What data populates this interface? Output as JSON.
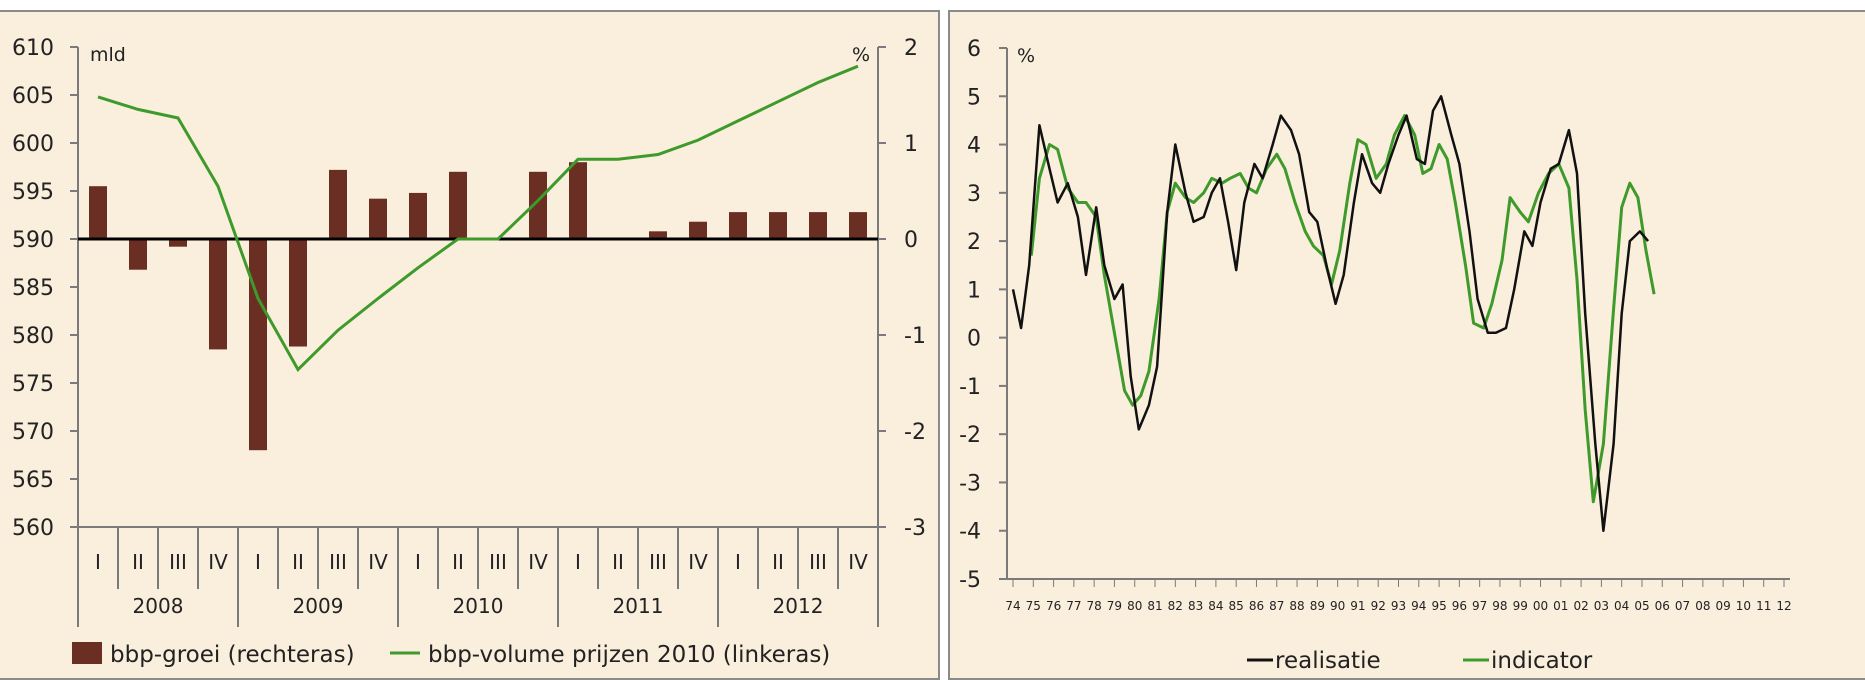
{
  "colors": {
    "background": "#faeedd",
    "bar": "#6b2e22",
    "green": "#3e9a2a",
    "black": "#111111",
    "axis": "#7a7a7a"
  },
  "chart_data": [
    {
      "type": "bar",
      "left_axis_unit": "mld",
      "right_axis_unit": "%",
      "left_ticks": [
        560,
        565,
        570,
        575,
        580,
        585,
        590,
        595,
        600,
        605,
        610
      ],
      "right_ticks": [
        -3,
        -2,
        -1,
        0,
        1,
        2
      ],
      "ylim_left": [
        560,
        610
      ],
      "ylim_right": [
        -3,
        2
      ],
      "categories": [
        "I",
        "II",
        "III",
        "IV",
        "I",
        "II",
        "III",
        "IV",
        "I",
        "II",
        "III",
        "IV",
        "I",
        "II",
        "III",
        "IV",
        "I",
        "II",
        "III",
        "IV"
      ],
      "years": [
        "2008",
        "2009",
        "2010",
        "2011",
        "2012"
      ],
      "series": [
        {
          "name": "bbp-groei (rechteras)",
          "axis": "right",
          "values": [
            0.55,
            -0.32,
            -0.08,
            -1.15,
            -2.2,
            -1.12,
            0.72,
            0.42,
            0.48,
            0.7,
            null,
            0.7,
            0.8,
            null,
            0.08,
            0.18,
            0.28,
            0.28,
            0.28,
            0.28
          ]
        },
        {
          "name": "bbp-volume prijzen 2010 (linkeras)",
          "axis": "left",
          "values": [
            604.8,
            603.5,
            602.6,
            595.5,
            583.8,
            576.4,
            580.5,
            583.8,
            587.0,
            590.0,
            590.0,
            594.0,
            598.3,
            598.3,
            598.8,
            600.3,
            602.3,
            604.3,
            606.3,
            608.0
          ]
        }
      ],
      "legend": [
        "bbp-groei (rechteras)",
        "bbp-volume prijzen 2010 (linkeras)"
      ]
    },
    {
      "type": "line",
      "y_unit": "%",
      "ylim": [
        -5,
        6
      ],
      "y_ticks": [
        -5,
        -4,
        -3,
        -2,
        -1,
        0,
        1,
        2,
        3,
        4,
        5,
        6
      ],
      "x_ticks": [
        "74",
        "75",
        "76",
        "77",
        "78",
        "79",
        "80",
        "81",
        "82",
        "83",
        "84",
        "85",
        "86",
        "87",
        "88",
        "89",
        "90",
        "91",
        "92",
        "93",
        "94",
        "95",
        "96",
        "97",
        "98",
        "99",
        "00",
        "01",
        "02",
        "03",
        "04",
        "05",
        "06",
        "07",
        "08",
        "09",
        "10",
        "11",
        "12"
      ],
      "series": [
        {
          "name": "realisatie",
          "points": [
            [
              1974.0,
              1.0
            ],
            [
              1974.4,
              0.2
            ],
            [
              1974.8,
              1.5
            ],
            [
              1975.3,
              4.4
            ],
            [
              1975.8,
              3.5
            ],
            [
              1976.2,
              2.8
            ],
            [
              1976.7,
              3.2
            ],
            [
              1977.2,
              2.5
            ],
            [
              1977.6,
              1.3
            ],
            [
              1978.1,
              2.7
            ],
            [
              1978.5,
              1.5
            ],
            [
              1979.0,
              0.8
            ],
            [
              1979.4,
              1.1
            ],
            [
              1979.8,
              -0.8
            ],
            [
              1980.2,
              -1.9
            ],
            [
              1980.7,
              -1.4
            ],
            [
              1981.1,
              -0.6
            ],
            [
              1981.6,
              2.6
            ],
            [
              1982.0,
              4.0
            ],
            [
              1982.5,
              3.0
            ],
            [
              1982.9,
              2.4
            ],
            [
              1983.4,
              2.5
            ],
            [
              1983.8,
              3.0
            ],
            [
              1984.2,
              3.3
            ],
            [
              1984.6,
              2.4
            ],
            [
              1985.0,
              1.4
            ],
            [
              1985.4,
              2.8
            ],
            [
              1985.9,
              3.6
            ],
            [
              1986.3,
              3.3
            ],
            [
              1986.8,
              4.0
            ],
            [
              1987.2,
              4.6
            ],
            [
              1987.7,
              4.3
            ],
            [
              1988.1,
              3.8
            ],
            [
              1988.6,
              2.6
            ],
            [
              1989.0,
              2.4
            ],
            [
              1989.5,
              1.4
            ],
            [
              1989.9,
              0.7
            ],
            [
              1990.3,
              1.3
            ],
            [
              1990.8,
              2.8
            ],
            [
              1991.2,
              3.8
            ],
            [
              1991.7,
              3.2
            ],
            [
              1992.1,
              3.0
            ],
            [
              1992.5,
              3.6
            ],
            [
              1993.0,
              4.2
            ],
            [
              1993.4,
              4.6
            ],
            [
              1993.9,
              3.7
            ],
            [
              1994.3,
              3.6
            ],
            [
              1994.7,
              4.7
            ],
            [
              1995.1,
              5.0
            ],
            [
              1995.6,
              4.2
            ],
            [
              1996.0,
              3.6
            ],
            [
              1996.5,
              2.2
            ],
            [
              1996.9,
              0.8
            ],
            [
              1997.4,
              0.1
            ],
            [
              1997.8,
              0.1
            ],
            [
              1998.3,
              0.2
            ],
            [
              1998.7,
              1.0
            ],
            [
              1999.2,
              2.2
            ],
            [
              1999.6,
              1.9
            ],
            [
              2000.0,
              2.8
            ],
            [
              2000.5,
              3.5
            ],
            [
              2000.9,
              3.6
            ],
            [
              2001.4,
              4.3
            ],
            [
              2001.8,
              3.4
            ],
            [
              2002.2,
              0.5
            ],
            [
              2002.7,
              -2.2
            ],
            [
              2003.1,
              -4.0
            ],
            [
              2003.6,
              -2.2
            ],
            [
              2004.0,
              0.5
            ],
            [
              2004.4,
              2.0
            ],
            [
              2004.9,
              2.2
            ],
            [
              2005.3,
              2.0
            ]
          ]
        },
        {
          "name": "indicator",
          "points": [
            [
              1974.9,
              1.7
            ],
            [
              1975.3,
              3.3
            ],
            [
              1975.8,
              4.0
            ],
            [
              1976.2,
              3.9
            ],
            [
              1976.7,
              3.1
            ],
            [
              1977.2,
              2.8
            ],
            [
              1977.6,
              2.8
            ],
            [
              1978.1,
              2.5
            ],
            [
              1978.5,
              1.3
            ],
            [
              1979.0,
              0.1
            ],
            [
              1979.5,
              -1.1
            ],
            [
              1979.9,
              -1.4
            ],
            [
              1980.3,
              -1.2
            ],
            [
              1980.7,
              -0.7
            ],
            [
              1981.2,
              0.8
            ],
            [
              1981.6,
              2.6
            ],
            [
              1982.0,
              3.2
            ],
            [
              1982.5,
              2.9
            ],
            [
              1982.9,
              2.8
            ],
            [
              1983.4,
              3.0
            ],
            [
              1983.8,
              3.3
            ],
            [
              1984.3,
              3.2
            ],
            [
              1984.7,
              3.3
            ],
            [
              1985.2,
              3.4
            ],
            [
              1985.6,
              3.1
            ],
            [
              1986.0,
              3.0
            ],
            [
              1986.5,
              3.5
            ],
            [
              1987.0,
              3.8
            ],
            [
              1987.4,
              3.5
            ],
            [
              1987.9,
              2.8
            ],
            [
              1988.4,
              2.2
            ],
            [
              1988.8,
              1.9
            ],
            [
              1989.3,
              1.7
            ],
            [
              1989.7,
              1.1
            ],
            [
              1990.1,
              1.8
            ],
            [
              1990.6,
              3.2
            ],
            [
              1991.0,
              4.1
            ],
            [
              1991.4,
              4.0
            ],
            [
              1991.9,
              3.3
            ],
            [
              1992.4,
              3.6
            ],
            [
              1992.8,
              4.2
            ],
            [
              1993.3,
              4.6
            ],
            [
              1993.8,
              4.2
            ],
            [
              1994.2,
              3.4
            ],
            [
              1994.6,
              3.5
            ],
            [
              1995.0,
              4.0
            ],
            [
              1995.4,
              3.7
            ],
            [
              1995.8,
              2.8
            ],
            [
              1996.3,
              1.5
            ],
            [
              1996.7,
              0.3
            ],
            [
              1997.2,
              0.2
            ],
            [
              1997.6,
              0.7
            ],
            [
              1998.1,
              1.6
            ],
            [
              1998.5,
              2.9
            ],
            [
              1999.0,
              2.6
            ],
            [
              1999.4,
              2.4
            ],
            [
              1999.9,
              3.0
            ],
            [
              2000.4,
              3.4
            ],
            [
              2000.9,
              3.6
            ],
            [
              2001.4,
              3.1
            ],
            [
              2001.8,
              1.2
            ],
            [
              2002.2,
              -1.5
            ],
            [
              2002.6,
              -3.4
            ],
            [
              2003.1,
              -2.2
            ],
            [
              2003.6,
              0.6
            ],
            [
              2004.0,
              2.7
            ],
            [
              2004.4,
              3.2
            ],
            [
              2004.8,
              2.9
            ],
            [
              2005.2,
              1.8
            ],
            [
              2005.6,
              0.9
            ]
          ]
        }
      ],
      "legend": [
        "realisatie",
        "indicator"
      ]
    }
  ]
}
